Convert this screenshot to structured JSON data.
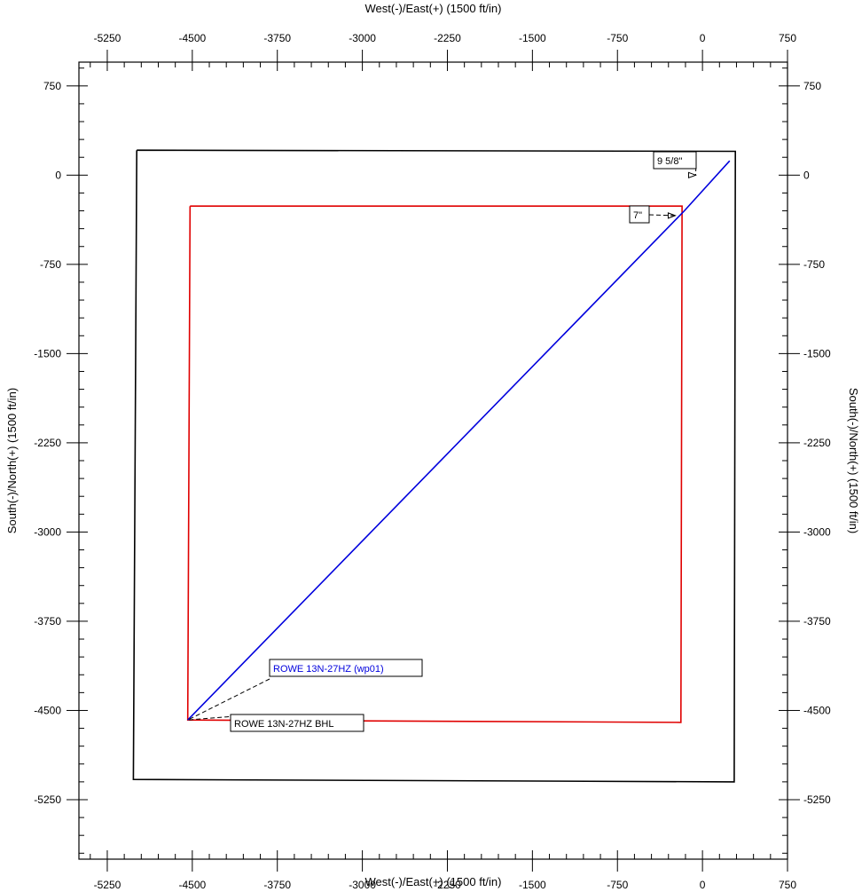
{
  "chart_data": {
    "type": "line",
    "title": "",
    "xlabel": "West(-)/East(+) (1500 ft/in)",
    "ylabel": "South(-)/North(+) (1500 ft/in)",
    "xlim": [
      -5500,
      750
    ],
    "ylim": [
      -5750,
      950
    ],
    "x_ticks": [
      -5250,
      -4500,
      -3750,
      -3000,
      -2250,
      -1500,
      -750,
      0,
      750
    ],
    "y_ticks": [
      750,
      0,
      -750,
      -1500,
      -2250,
      -3000,
      -3750,
      -4500,
      -5250
    ],
    "x_tick_labels": [
      "-5250",
      "-4500",
      "-3750",
      "-3000",
      "-2250",
      "-1500",
      "-750",
      "0",
      "750"
    ],
    "y_tick_labels": [
      "750",
      "0",
      "-750",
      "-1500",
      "-2250",
      "-3000",
      "-3750",
      "-4500",
      "-5250"
    ],
    "grid": false,
    "series": [
      {
        "color": "#000000",
        "x": [
          -4990,
          290,
          280,
          -5020,
          -4990
        ],
        "y": [
          210,
          200,
          -5100,
          -5080,
          210
        ]
      },
      {
        "color": "#e00000",
        "x": [
          -4520,
          -180,
          -190,
          -4540,
          -4520
        ],
        "y": [
          -260,
          -260,
          -4600,
          -4580,
          -260
        ]
      },
      {
        "color": "#0000dd",
        "x": [
          240,
          -160,
          -4540
        ],
        "y": [
          120,
          -300,
          -4580
        ]
      }
    ],
    "annotations": [
      {
        "text": "9 5/8\"",
        "color": "#000000",
        "px": -60,
        "py": 0
      },
      {
        "text": "7\"",
        "color": "#000000",
        "px": -240,
        "py": -340
      },
      {
        "text": "ROWE 13N-27HZ (wp01)",
        "color": "#0000dd",
        "px": -4540,
        "py": -4580
      },
      {
        "text": "ROWE 13N-27HZ BHL",
        "color": "#000000",
        "px": -4540,
        "py": -4580
      }
    ]
  }
}
